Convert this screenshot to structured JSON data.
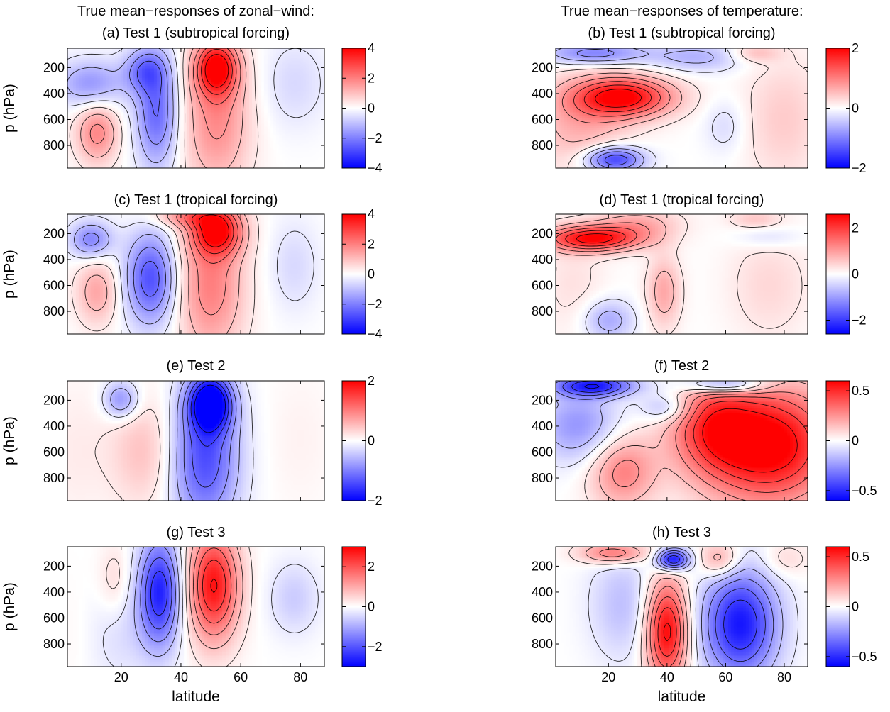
{
  "figure": {
    "column_titles": [
      "True mean−responses of zonal−wind:",
      "True mean−responses of temperature:"
    ]
  },
  "chart_data": [
    {
      "id": "a",
      "type": "heatmap",
      "title": "(a) Test 1 (subtropical forcing)",
      "field": "zonal-wind",
      "ylabel": "p (hPa)",
      "xlabel": "",
      "xlim": [
        2,
        88
      ],
      "ylim": [
        975,
        50
      ],
      "y_scale": "linear",
      "yticks": [
        200,
        400,
        600,
        800
      ],
      "xticks": [
        20,
        40,
        60,
        80
      ],
      "show_x_tick_labels": false,
      "colorbar": {
        "range": [
          -4,
          4
        ],
        "ticks": [
          4,
          2,
          0,
          -2,
          -4
        ],
        "tick_labels": [
          "4",
          "2",
          "0",
          "−2",
          "−4"
        ]
      },
      "features": [
        {
          "lat": 52,
          "p": 200,
          "amp": 3.7,
          "sx": 5,
          "sp": 150
        },
        {
          "lat": 52,
          "p": 600,
          "amp": 1.8,
          "sx": 8,
          "sp": 380
        },
        {
          "lat": 12,
          "p": 700,
          "amp": 1.9,
          "sx": 5,
          "sp": 170
        },
        {
          "lat": 32,
          "p": 550,
          "amp": -2.4,
          "sx": 5,
          "sp": 300
        },
        {
          "lat": 28,
          "p": 220,
          "amp": -1.8,
          "sx": 5,
          "sp": 120
        },
        {
          "lat": 10,
          "p": 330,
          "amp": -1.7,
          "sx": 8,
          "sp": 130
        },
        {
          "lat": 78,
          "p": 320,
          "amp": -0.6,
          "sx": 8,
          "sp": 250
        }
      ]
    },
    {
      "id": "b",
      "type": "heatmap",
      "title": "(b) Test 1 (subtropical forcing)",
      "field": "temperature",
      "ylabel": "",
      "xlabel": "",
      "xlim": [
        2,
        88
      ],
      "ylim": [
        975,
        50
      ],
      "y_scale": "linear",
      "yticks": [
        200,
        400,
        600,
        800
      ],
      "xticks": [
        20,
        40,
        60,
        80
      ],
      "show_x_tick_labels": false,
      "colorbar": {
        "range": [
          -2,
          2
        ],
        "ticks": [
          2,
          0,
          -2
        ],
        "tick_labels": [
          "2",
          "0",
          "−2"
        ]
      },
      "features": [
        {
          "lat": 25,
          "p": 430,
          "amp": 2.0,
          "sx": 12,
          "sp": 110
        },
        {
          "lat": 10,
          "p": 650,
          "amp": 0.6,
          "sx": 12,
          "sp": 250
        },
        {
          "lat": 22,
          "p": 910,
          "amp": -1.6,
          "sx": 7,
          "sp": 70
        },
        {
          "lat": 15,
          "p": 90,
          "amp": -1.0,
          "sx": 12,
          "sp": 60
        },
        {
          "lat": 50,
          "p": 120,
          "amp": -0.6,
          "sx": 12,
          "sp": 80
        },
        {
          "lat": 70,
          "p": 90,
          "amp": 0.5,
          "sx": 6,
          "sp": 50
        },
        {
          "lat": 80,
          "p": 600,
          "amp": 0.4,
          "sx": 10,
          "sp": 350
        },
        {
          "lat": 60,
          "p": 650,
          "amp": -0.3,
          "sx": 5,
          "sp": 150
        }
      ]
    },
    {
      "id": "c",
      "type": "heatmap",
      "title": "(c) Test 1 (tropical forcing)",
      "field": "zonal-wind",
      "ylabel": "p (hPa)",
      "xlabel": "",
      "xlim": [
        2,
        88
      ],
      "ylim": [
        975,
        50
      ],
      "y_scale": "linear",
      "yticks": [
        200,
        400,
        600,
        800
      ],
      "xticks": [
        20,
        40,
        60,
        80
      ],
      "show_x_tick_labels": false,
      "colorbar": {
        "range": [
          -4,
          4
        ],
        "ticks": [
          4,
          2,
          0,
          -2,
          -4
        ],
        "tick_labels": [
          "4",
          "2",
          "0",
          "−2",
          "−4"
        ]
      },
      "features": [
        {
          "lat": 52,
          "p": 180,
          "amp": 3.5,
          "sx": 6,
          "sp": 130
        },
        {
          "lat": 50,
          "p": 600,
          "amp": 2.0,
          "sx": 8,
          "sp": 380
        },
        {
          "lat": 42,
          "p": 70,
          "amp": 1.5,
          "sx": 8,
          "sp": 60
        },
        {
          "lat": 30,
          "p": 550,
          "amp": -2.8,
          "sx": 6,
          "sp": 250
        },
        {
          "lat": 10,
          "p": 250,
          "amp": -2.0,
          "sx": 5,
          "sp": 100
        },
        {
          "lat": 12,
          "p": 650,
          "amp": 1.4,
          "sx": 5,
          "sp": 180
        },
        {
          "lat": 78,
          "p": 450,
          "amp": -0.6,
          "sx": 6,
          "sp": 250
        }
      ]
    },
    {
      "id": "d",
      "type": "heatmap",
      "title": "(d) Test 1 (tropical forcing)",
      "field": "temperature",
      "ylabel": "",
      "xlabel": "",
      "xlim": [
        2,
        88
      ],
      "ylim": [
        975,
        50
      ],
      "y_scale": "linear",
      "yticks": [
        200,
        400,
        600,
        800
      ],
      "xticks": [
        20,
        40,
        60,
        80
      ],
      "show_x_tick_labels": false,
      "colorbar": {
        "range": [
          -2.6,
          2.6
        ],
        "ticks": [
          2,
          0,
          -2
        ],
        "tick_labels": [
          "2",
          "0",
          "−2"
        ]
      },
      "features": [
        {
          "lat": 15,
          "p": 240,
          "amp": 2.5,
          "sx": 12,
          "sp": 70
        },
        {
          "lat": 30,
          "p": 120,
          "amp": 0.8,
          "sx": 10,
          "sp": 80
        },
        {
          "lat": 20,
          "p": 870,
          "amp": -0.9,
          "sx": 6,
          "sp": 110
        },
        {
          "lat": 39,
          "p": 650,
          "amp": 0.9,
          "sx": 4,
          "sp": 200
        },
        {
          "lat": 70,
          "p": 90,
          "amp": 0.5,
          "sx": 6,
          "sp": 50
        },
        {
          "lat": 75,
          "p": 230,
          "amp": -0.4,
          "sx": 8,
          "sp": 60
        },
        {
          "lat": 75,
          "p": 600,
          "amp": 0.4,
          "sx": 10,
          "sp": 300
        },
        {
          "lat": 8,
          "p": 600,
          "amp": 0.3,
          "sx": 8,
          "sp": 300
        }
      ]
    },
    {
      "id": "e",
      "type": "heatmap",
      "title": "(e) Test 2",
      "field": "zonal-wind",
      "ylabel": "p (hPa)",
      "xlabel": "",
      "xlim": [
        2,
        88
      ],
      "ylim": [
        975,
        50
      ],
      "y_scale": "linear",
      "yticks": [
        200,
        400,
        600,
        800
      ],
      "xticks": [
        20,
        40,
        60,
        80
      ],
      "show_x_tick_labels": false,
      "colorbar": {
        "range": [
          -2,
          2
        ],
        "ticks": [
          2,
          0,
          -2
        ],
        "tick_labels": [
          "2",
          "0",
          "−2"
        ]
      },
      "features": [
        {
          "lat": 50,
          "p": 220,
          "amp": -2.1,
          "sx": 5,
          "sp": 150
        },
        {
          "lat": 48,
          "p": 650,
          "amp": -1.4,
          "sx": 8,
          "sp": 380
        },
        {
          "lat": 20,
          "p": 200,
          "amp": -0.9,
          "sx": 4,
          "sp": 100
        },
        {
          "lat": 28,
          "p": 600,
          "amp": 0.5,
          "sx": 8,
          "sp": 300
        },
        {
          "lat": 80,
          "p": 500,
          "amp": 0.1,
          "sx": 8,
          "sp": 400
        },
        {
          "lat": 5,
          "p": 600,
          "amp": 0.15,
          "sx": 8,
          "sp": 400
        }
      ]
    },
    {
      "id": "f",
      "type": "heatmap",
      "title": "(f) Test 2",
      "field": "temperature",
      "ylabel": "",
      "xlabel": "",
      "xlim": [
        2,
        88
      ],
      "ylim": [
        975,
        50
      ],
      "y_scale": "linear",
      "yticks": [
        200,
        400,
        600,
        800
      ],
      "xticks": [
        20,
        40,
        60,
        80
      ],
      "show_x_tick_labels": false,
      "colorbar": {
        "range": [
          -0.6,
          0.6
        ],
        "ticks": [
          0.5,
          0,
          -0.5
        ],
        "tick_labels": [
          "0.5",
          "0",
          "−0.5"
        ]
      },
      "features": [
        {
          "lat": 75,
          "p": 550,
          "amp": 0.65,
          "sx": 16,
          "sp": 320
        },
        {
          "lat": 55,
          "p": 400,
          "amp": 0.35,
          "sx": 10,
          "sp": 250
        },
        {
          "lat": 25,
          "p": 750,
          "amp": 0.3,
          "sx": 8,
          "sp": 200
        },
        {
          "lat": 15,
          "p": 90,
          "amp": -0.5,
          "sx": 10,
          "sp": 60
        },
        {
          "lat": 60,
          "p": 80,
          "amp": -0.4,
          "sx": 10,
          "sp": 50
        },
        {
          "lat": 10,
          "p": 400,
          "amp": -0.25,
          "sx": 10,
          "sp": 200
        },
        {
          "lat": 40,
          "p": 260,
          "amp": -0.2,
          "sx": 6,
          "sp": 80
        }
      ]
    },
    {
      "id": "g",
      "type": "heatmap",
      "title": "(g) Test 3",
      "field": "zonal-wind",
      "ylabel": "p (hPa)",
      "xlabel": "latitude",
      "xlim": [
        2,
        88
      ],
      "ylim": [
        975,
        50
      ],
      "y_scale": "linear",
      "yticks": [
        200,
        400,
        600,
        800
      ],
      "xticks": [
        20,
        40,
        60,
        80
      ],
      "show_x_tick_labels": true,
      "colorbar": {
        "range": [
          -3,
          3
        ],
        "ticks": [
          2,
          0,
          -2
        ],
        "tick_labels": [
          "2",
          "0",
          "−2"
        ]
      },
      "features": [
        {
          "lat": 51,
          "p": 350,
          "amp": 2.8,
          "sx": 6,
          "sp": 300
        },
        {
          "lat": 33,
          "p": 400,
          "amp": -2.6,
          "sx": 5,
          "sp": 300
        },
        {
          "lat": 18,
          "p": 320,
          "amp": 0.5,
          "sx": 4,
          "sp": 200
        },
        {
          "lat": 20,
          "p": 700,
          "amp": -0.4,
          "sx": 8,
          "sp": 300
        },
        {
          "lat": 78,
          "p": 450,
          "amp": -0.6,
          "sx": 6,
          "sp": 200
        },
        {
          "lat": 5,
          "p": 700,
          "amp": 0.1,
          "sx": 5,
          "sp": 300
        }
      ]
    },
    {
      "id": "h",
      "type": "heatmap",
      "title": "(h) Test 3",
      "field": "temperature",
      "ylabel": "",
      "xlabel": "latitude",
      "xlim": [
        2,
        88
      ],
      "ylim": [
        975,
        50
      ],
      "y_scale": "linear",
      "yticks": [
        200,
        400,
        600,
        800
      ],
      "xticks": [
        20,
        40,
        60,
        80
      ],
      "show_x_tick_labels": true,
      "colorbar": {
        "range": [
          -0.6,
          0.6
        ],
        "ticks": [
          0.5,
          0,
          -0.5
        ],
        "tick_labels": [
          "0.5",
          "0",
          "−0.5"
        ]
      },
      "features": [
        {
          "lat": 40,
          "p": 700,
          "amp": 0.6,
          "sx": 5,
          "sp": 280
        },
        {
          "lat": 65,
          "p": 650,
          "amp": -0.55,
          "sx": 9,
          "sp": 300
        },
        {
          "lat": 42,
          "p": 150,
          "amp": -0.6,
          "sx": 4,
          "sp": 60
        },
        {
          "lat": 22,
          "p": 100,
          "amp": 0.35,
          "sx": 8,
          "sp": 60
        },
        {
          "lat": 58,
          "p": 150,
          "amp": 0.25,
          "sx": 5,
          "sp": 100
        },
        {
          "lat": 25,
          "p": 500,
          "amp": -0.15,
          "sx": 8,
          "sp": 300
        },
        {
          "lat": 80,
          "p": 150,
          "amp": 0.1,
          "sx": 6,
          "sp": 100
        }
      ]
    }
  ]
}
